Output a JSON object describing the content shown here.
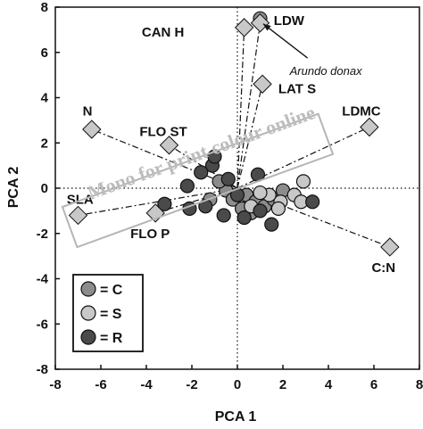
{
  "chart_data": {
    "type": "scatter",
    "xlabel": "PCA 1",
    "ylabel": "PCA 2",
    "xlim": [
      -8,
      8
    ],
    "ylim": [
      -8,
      8
    ],
    "xticks": [
      "-8",
      "-6",
      "-4",
      "-2",
      "0",
      "2",
      "4",
      "6",
      "8"
    ],
    "yticks": [
      "-8",
      "-6",
      "-4",
      "-2",
      "0",
      "2",
      "4",
      "6",
      "8"
    ],
    "grid": false,
    "zero_lines": "dotted",
    "legend_position": "bottom-left",
    "legend": [
      {
        "label": "= C",
        "color": "#8c8c8c"
      },
      {
        "label": "= S",
        "color": "#c8c8c8"
      },
      {
        "label": "= R",
        "color": "#4a4a4a"
      }
    ],
    "trait_vectors": [
      {
        "label": "CAN H",
        "x": 0.3,
        "y": 7.1,
        "label_x": -4.2,
        "label_y": 6.9
      },
      {
        "label": "LDW",
        "x": 1.0,
        "y": 7.3,
        "label_x": 1.6,
        "label_y": 7.4
      },
      {
        "label": "LAT S",
        "x": 1.1,
        "y": 4.6,
        "label_x": 1.8,
        "label_y": 4.4
      },
      {
        "label": "LDMC",
        "x": 5.8,
        "y": 2.7,
        "label_x": 4.6,
        "label_y": 3.4
      },
      {
        "label": "N",
        "x": -6.4,
        "y": 2.6,
        "label_x": -6.8,
        "label_y": 3.4
      },
      {
        "label": "FLO ST",
        "x": -3.0,
        "y": 1.9,
        "label_x": -4.3,
        "label_y": 2.5
      },
      {
        "label": "SLA",
        "x": -7.0,
        "y": -1.2,
        "label_x": -7.5,
        "label_y": -0.5
      },
      {
        "label": "FLO P",
        "x": -3.6,
        "y": -1.1,
        "label_x": -4.7,
        "label_y": -2.0
      },
      {
        "label": "C:N",
        "x": 6.7,
        "y": -2.6,
        "label_x": 5.9,
        "label_y": -3.5
      }
    ],
    "species_annotation": {
      "label": "Arundo donax",
      "x": 0.9,
      "y": 7.5,
      "label_x": 2.3,
      "label_y": 5.2
    },
    "series": [
      {
        "name": "C",
        "color": "#8c8c8c",
        "points": [
          {
            "x": 1.0,
            "y": 7.5
          },
          {
            "x": -0.5,
            "y": -0.1
          },
          {
            "x": -0.2,
            "y": -0.5
          },
          {
            "x": 0.4,
            "y": -0.3
          },
          {
            "x": 0.8,
            "y": -0.6
          },
          {
            "x": 1.2,
            "y": -0.8
          },
          {
            "x": 1.6,
            "y": -0.5
          },
          {
            "x": 2.0,
            "y": -0.1
          },
          {
            "x": 0.6,
            "y": -1.1
          },
          {
            "x": -0.8,
            "y": 0.3
          },
          {
            "x": -1.2,
            "y": -0.5
          },
          {
            "x": 0.2,
            "y": -0.9
          }
        ]
      },
      {
        "name": "S",
        "color": "#c8c8c8",
        "points": [
          {
            "x": 2.5,
            "y": -0.3
          },
          {
            "x": 2.9,
            "y": 0.3
          },
          {
            "x": 1.9,
            "y": -0.6
          },
          {
            "x": 1.4,
            "y": -0.3
          },
          {
            "x": 2.8,
            "y": -0.6
          },
          {
            "x": 1.0,
            "y": -0.2
          },
          {
            "x": 0.6,
            "y": -0.8
          },
          {
            "x": 1.8,
            "y": -0.9
          }
        ]
      },
      {
        "name": "R",
        "color": "#4a4a4a",
        "points": [
          {
            "x": -1.1,
            "y": 1.0
          },
          {
            "x": -1.0,
            "y": 1.4
          },
          {
            "x": -1.6,
            "y": 0.7
          },
          {
            "x": -2.2,
            "y": 0.1
          },
          {
            "x": -3.2,
            "y": -0.7
          },
          {
            "x": -2.1,
            "y": -0.9
          },
          {
            "x": -1.4,
            "y": -0.8
          },
          {
            "x": -0.6,
            "y": -1.2
          },
          {
            "x": 0.3,
            "y": -1.3
          },
          {
            "x": 1.5,
            "y": -1.6
          },
          {
            "x": 3.3,
            "y": -0.6
          },
          {
            "x": 0.9,
            "y": 0.6
          },
          {
            "x": 1.0,
            "y": -1.0
          },
          {
            "x": -0.4,
            "y": 0.4
          },
          {
            "x": 0.0,
            "y": -0.3
          }
        ]
      }
    ],
    "trait_marker_color": "#c8c8c8"
  },
  "watermark": "Mono for print colour online"
}
